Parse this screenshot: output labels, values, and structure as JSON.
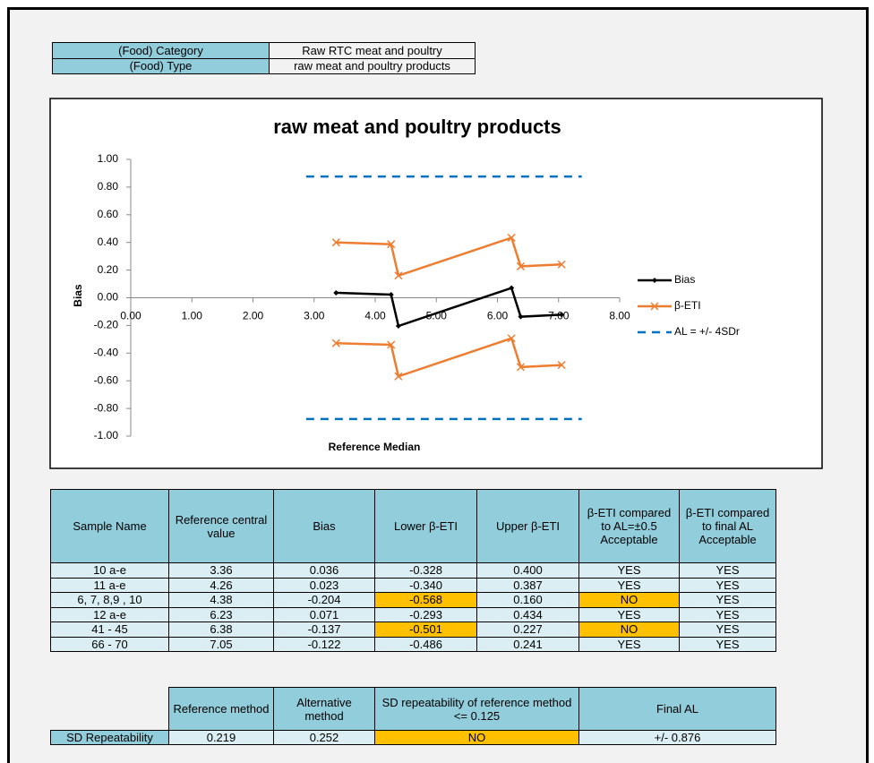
{
  "header": {
    "rows": [
      [
        "(Food) Category",
        "Raw RTC meat and poultry"
      ],
      [
        "(Food) Type",
        "raw meat and poultry  products"
      ]
    ]
  },
  "chart": {
    "type": "line",
    "title": "raw meat and poultry  products",
    "x_label": "Reference Median",
    "y_label": "Bias",
    "xlim": [
      0,
      8
    ],
    "ylim": [
      -1,
      1
    ],
    "xticks": [
      {
        "value": 0,
        "label": "0.00"
      },
      {
        "value": 1,
        "label": "1.00"
      },
      {
        "value": 2,
        "label": "2.00"
      },
      {
        "value": 3,
        "label": "3.00"
      },
      {
        "value": 4,
        "label": "4.00"
      },
      {
        "value": 5,
        "label": "5.00"
      },
      {
        "value": 6,
        "label": "6.00"
      },
      {
        "value": 7,
        "label": "7.00"
      },
      {
        "value": 8,
        "label": "8.00"
      }
    ],
    "yticks": [
      {
        "value": 1,
        "label": "1.00"
      },
      {
        "value": 0.8,
        "label": "0.80"
      },
      {
        "value": 0.6,
        "label": "0.60"
      },
      {
        "value": 0.4,
        "label": "0.40"
      },
      {
        "value": 0.2,
        "label": "0.20"
      },
      {
        "value": 0,
        "label": "0.00"
      },
      {
        "value": -0.2,
        "label": "-0.20"
      },
      {
        "value": -0.4,
        "label": "-0.40"
      },
      {
        "value": -0.6,
        "label": "-0.60"
      },
      {
        "value": -0.8,
        "label": "-0.80"
      },
      {
        "value": -1,
        "label": "-1.00"
      }
    ],
    "x": [
      3.36,
      4.26,
      4.38,
      6.23,
      6.38,
      7.05
    ],
    "series": [
      {
        "name": "Bias",
        "color": "#000000",
        "values": [
          0.036,
          0.023,
          -0.204,
          0.071,
          -0.137,
          -0.122
        ]
      },
      {
        "name": "β-ETI",
        "color": "#ed7d31",
        "upper": [
          0.4,
          0.387,
          0.16,
          0.434,
          0.227,
          0.241
        ],
        "lower": [
          -0.328,
          -0.34,
          -0.568,
          -0.293,
          -0.501,
          -0.486
        ]
      },
      {
        "name": "AL = +/- 4SDr",
        "color": "#0070c0",
        "x": [
          2.87,
          7.38
        ],
        "upper": [
          0.876,
          0.876
        ],
        "lower": [
          -0.876,
          -0.876
        ]
      }
    ],
    "legend": "right"
  },
  "table": {
    "columns": [
      "Sample Name",
      "Reference central value",
      "Bias",
      "Lower β-ETI",
      "Upper β-ETI",
      "β-ETI compared to AL=±0.5 Acceptable",
      "β-ETI compared to final AL Acceptable"
    ],
    "rows": [
      [
        "10 a-e",
        "3.36",
        "0.036",
        "-0.328",
        "0.400",
        "YES",
        "YES"
      ],
      [
        "11 a-e",
        "4.26",
        "0.023",
        "-0.340",
        "0.387",
        "YES",
        "YES"
      ],
      [
        "6, 7, 8,9 , 10",
        "4.38",
        "-0.204",
        "-0.568",
        "0.160",
        "NO",
        "YES"
      ],
      [
        "12 a-e",
        "6.23",
        "0.071",
        "-0.293",
        "0.434",
        "YES",
        "YES"
      ],
      [
        "41 - 45",
        "6.38",
        "-0.137",
        "-0.501",
        "0.227",
        "NO",
        "YES"
      ],
      [
        "66 - 70",
        "7.05",
        "-0.122",
        "-0.486",
        "0.241",
        "YES",
        "YES"
      ]
    ],
    "highlight": [
      [
        false,
        false,
        false,
        false,
        false,
        false,
        false
      ],
      [
        false,
        false,
        false,
        false,
        false,
        false,
        false
      ],
      [
        false,
        false,
        false,
        true,
        false,
        true,
        false
      ],
      [
        false,
        false,
        false,
        false,
        false,
        false,
        false
      ],
      [
        false,
        false,
        false,
        true,
        false,
        true,
        false
      ],
      [
        false,
        false,
        false,
        false,
        false,
        false,
        false
      ]
    ],
    "highlight_color": "#ffc000"
  },
  "summary": {
    "columns": [
      "Reference method",
      "Alternative method",
      "SD repeatability of reference method <= 0.125",
      "Final AL"
    ],
    "row_label": "SD Repeatability",
    "values": [
      "0.219",
      "0.252",
      "NO",
      "+/- 0.876"
    ],
    "highlight": [
      false,
      false,
      true,
      false
    ]
  }
}
